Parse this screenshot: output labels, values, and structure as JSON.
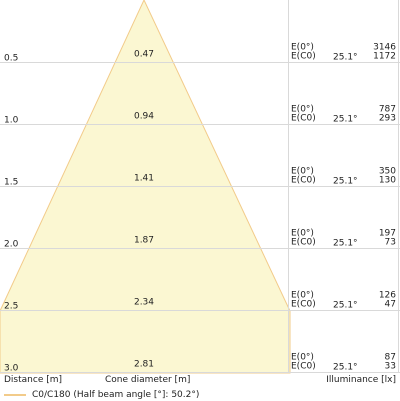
{
  "colors": {
    "cone_fill": "#fbf7d2",
    "cone_stroke": "#f2cb8a",
    "grid": "#d9d9d9"
  },
  "rows": [
    {
      "distance": "0.5",
      "diameter": "0.47",
      "e0_label": "E(0°)",
      "ec0_label": "E(C0)",
      "angle": "25.1°",
      "e0": "3146",
      "ec0": "1172"
    },
    {
      "distance": "1.0",
      "diameter": "0.94",
      "e0_label": "E(0°)",
      "ec0_label": "E(C0)",
      "angle": "25.1°",
      "e0": "787",
      "ec0": "293"
    },
    {
      "distance": "1.5",
      "diameter": "1.41",
      "e0_label": "E(0°)",
      "ec0_label": "E(C0)",
      "angle": "25.1°",
      "e0": "350",
      "ec0": "130"
    },
    {
      "distance": "2.0",
      "diameter": "1.87",
      "e0_label": "E(0°)",
      "ec0_label": "E(C0)",
      "angle": "25.1°",
      "e0": "197",
      "ec0": "73"
    },
    {
      "distance": "2.5",
      "diameter": "2.34",
      "e0_label": "E(0°)",
      "ec0_label": "E(C0)",
      "angle": "25.1°",
      "e0": "126",
      "ec0": "47"
    },
    {
      "distance": "3.0",
      "diameter": "2.81",
      "e0_label": "E(0°)",
      "ec0_label": "E(C0)",
      "angle": "25.1°",
      "e0": "87",
      "ec0": "33"
    }
  ],
  "footer": {
    "distance_label": "Distance [m]",
    "diameter_label": "Cone diameter [m]",
    "illuminance_label": "Illuminance [lx]"
  },
  "legend": {
    "text": "C0/C180 (Half beam angle [°]: 50.2°)"
  }
}
